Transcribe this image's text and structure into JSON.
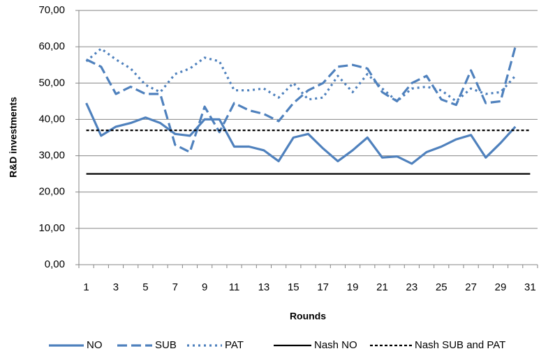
{
  "chart_data": {
    "type": "line",
    "x_label": "Rounds",
    "y_label": "R&D investments",
    "categories": [
      1,
      null,
      3,
      null,
      5,
      null,
      7,
      null,
      9,
      null,
      11,
      null,
      13,
      null,
      15,
      null,
      17,
      null,
      19,
      null,
      21,
      null,
      23,
      null,
      25,
      null,
      27,
      null,
      29,
      null,
      31
    ],
    "ylim": [
      0,
      70
    ],
    "yticks": [
      {
        "value": 0,
        "label": "0,00"
      },
      {
        "value": 10,
        "label": "10,00"
      },
      {
        "value": 20,
        "label": "20,00"
      },
      {
        "value": 30,
        "label": "30,00"
      },
      {
        "value": 40,
        "label": "40,00"
      },
      {
        "value": 50,
        "label": "50,00"
      },
      {
        "value": 60,
        "label": "60,00"
      },
      {
        "value": 70,
        "label": "70,00"
      }
    ],
    "grid": true,
    "legend": "bottom",
    "series": [
      {
        "name": "NO",
        "color": "#4f81bd",
        "dash": "solid",
        "values": [
          44.5,
          35.5,
          38,
          39,
          40.5,
          39,
          36,
          35.5,
          40,
          40,
          32.5,
          32.5,
          31.5,
          28.5,
          35,
          36,
          32,
          28.5,
          31.5,
          35,
          29.5,
          29.8,
          27.8,
          31,
          32.5,
          34.5,
          35.7,
          29.5,
          33.5,
          38,
          null
        ]
      },
      {
        "name": "SUB",
        "color": "#4f81bd",
        "dash": "dash",
        "values": [
          56.5,
          54.5,
          47,
          49,
          47,
          47,
          33,
          31,
          43.5,
          36.5,
          44.5,
          42.5,
          41.5,
          39.5,
          44.5,
          48,
          50,
          54.5,
          55,
          54,
          47.5,
          45,
          50,
          52,
          45.5,
          44,
          53.5,
          44.5,
          45,
          60,
          null
        ]
      },
      {
        "name": "PAT",
        "color": "#4f81bd",
        "dash": "dot",
        "values": [
          56,
          59.5,
          56.5,
          54,
          49.5,
          47.5,
          52.5,
          54,
          57,
          56,
          48,
          48,
          48.5,
          46,
          50,
          45.5,
          46,
          52,
          47.5,
          52.5,
          48.5,
          45,
          48.5,
          49,
          48,
          45,
          48.5,
          47,
          47.5,
          52,
          null
        ]
      },
      {
        "name": "Nash NO",
        "color": "#000000",
        "dash": "solid",
        "values": [
          25,
          25,
          25,
          25,
          25,
          25,
          25,
          25,
          25,
          25,
          25,
          25,
          25,
          25,
          25,
          25,
          25,
          25,
          25,
          25,
          25,
          25,
          25,
          25,
          25,
          25,
          25,
          25,
          25,
          25,
          25
        ]
      },
      {
        "name": "Nash SUB and PAT",
        "color": "#000000",
        "dash": "shortdash",
        "values": [
          37,
          37,
          37,
          37,
          37,
          37,
          37,
          37,
          37,
          37,
          37,
          37,
          37,
          37,
          37,
          37,
          37,
          37,
          37,
          37,
          37,
          37,
          37,
          37,
          37,
          37,
          37,
          37,
          37,
          37,
          37
        ]
      }
    ]
  }
}
